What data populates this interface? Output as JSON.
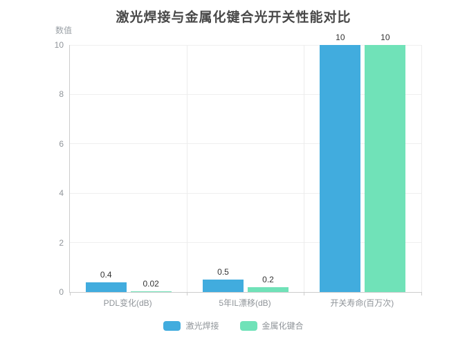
{
  "chart_data": {
    "type": "bar",
    "title": "激光焊接与金属化键合光开关性能对比",
    "ylabel": "数值",
    "xlabel": "",
    "categories": [
      "PDL变化(dB)",
      "5年IL漂移(dB)",
      "开关寿命(百万次)"
    ],
    "series": [
      {
        "name": "激光焊接",
        "color": "#41ACDE",
        "values": [
          0.4,
          0.5,
          10
        ]
      },
      {
        "name": "金属化键合",
        "color": "#70E2B8",
        "values": [
          0.02,
          0.2,
          10
        ]
      }
    ],
    "value_labels": [
      [
        "0.4",
        "0.5",
        "10"
      ],
      [
        "0.02",
        "0.2",
        "10"
      ]
    ],
    "ylim": [
      0,
      10
    ],
    "y_ticks": [
      0,
      2,
      4,
      6,
      8,
      10
    ],
    "grid": true,
    "legend_position": "bottom"
  },
  "colors": {
    "background": "#ffffff",
    "title_text": "#484848",
    "axis_line": "#cccccc",
    "gridline": "#efefef",
    "axis_text": "#8f9499",
    "value_label_text": "#333333"
  }
}
